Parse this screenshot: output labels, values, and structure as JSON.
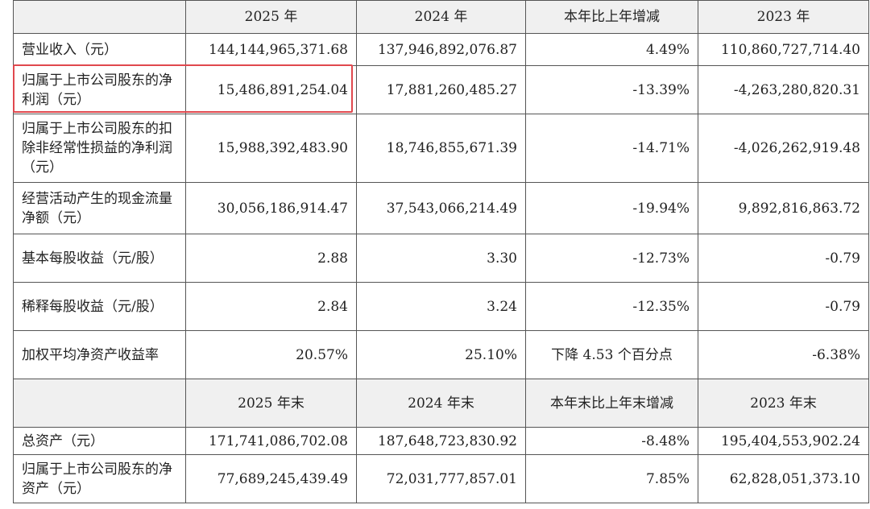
{
  "header1": [
    "",
    "2025 年",
    "2024 年",
    "本年比上年增减",
    "2023 年"
  ],
  "rows1": [
    {
      "label": "营业收入（元）",
      "v2025": "144,144,965,371.68",
      "v2024": "137,946,892,076.87",
      "chg": "4.49%",
      "v2023": "110,860,727,714.40"
    },
    {
      "label": "归属于上市公司股东的净利润（元）",
      "v2025": "15,486,891,254.04",
      "v2024": "17,881,260,485.27",
      "chg": "-13.39%",
      "v2023": "-4,263,280,820.31"
    },
    {
      "label": "归属于上市公司股东的扣除非经常性损益的净利润（元）",
      "v2025": "15,988,392,483.90",
      "v2024": "18,746,855,671.39",
      "chg": "-14.71%",
      "v2023": "-4,026,262,919.48"
    },
    {
      "label": "经营活动产生的现金流量净额（元）",
      "v2025": "30,056,186,914.47",
      "v2024": "37,543,066,214.49",
      "chg": "-19.94%",
      "v2023": "9,892,816,863.72"
    },
    {
      "label": "基本每股收益（元/股）",
      "v2025": "2.88",
      "v2024": "3.30",
      "chg": "-12.73%",
      "v2023": "-0.79"
    },
    {
      "label": "稀释每股收益（元/股）",
      "v2025": "2.84",
      "v2024": "3.24",
      "chg": "-12.35%",
      "v2023": "-0.79"
    },
    {
      "label": "加权平均净资产收益率",
      "v2025": "20.57%",
      "v2024": "25.10%",
      "chg": "下降 4.53 个百分点",
      "v2023": "-6.38%"
    }
  ],
  "header2": [
    "",
    "2025 年末",
    "2024 年末",
    "本年末比上年末增减",
    "2023 年末"
  ],
  "rows2": [
    {
      "label": "总资产（元）",
      "v2025": "171,741,086,702.08",
      "v2024": "187,648,723,830.92",
      "chg": "-8.48%",
      "v2023": "195,404,553,902.24"
    },
    {
      "label": "归属于上市公司股东的净资产（元）",
      "v2025": "77,689,245,439.49",
      "v2024": "72,031,777,857.01",
      "chg": "7.85%",
      "v2023": "62,828,051,373.10"
    }
  ],
  "highlight_color": "#e0484e"
}
